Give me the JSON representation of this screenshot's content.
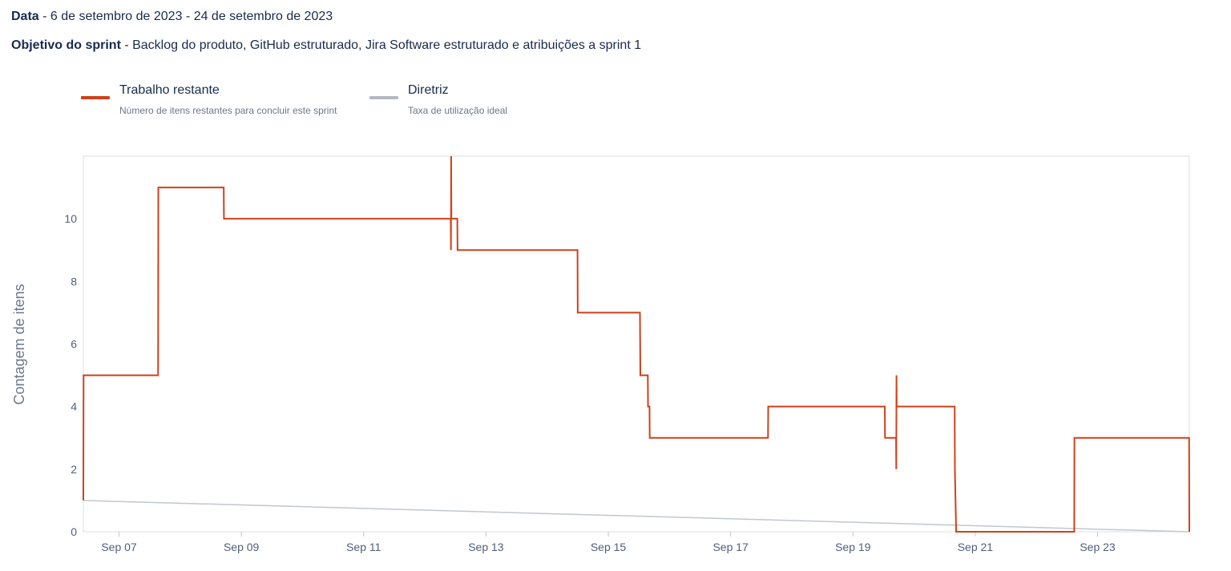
{
  "header": {
    "date_label": "Data",
    "date_value": "6 de setembro de 2023 - 24 de setembro de 2023",
    "goal_label": "Objetivo do sprint",
    "goal_value": "Backlog do produto, GitHub estruturado, Jira Software estruturado e atribuições a sprint 1"
  },
  "legend": {
    "remaining": {
      "title": "Trabalho restante",
      "subtitle": "Número de itens restantes para concluir este sprint",
      "color": "#d04119"
    },
    "guideline": {
      "title": "Diretriz",
      "subtitle": "Taxa de utilização ideal",
      "color": "#b3bac5"
    }
  },
  "colors": {
    "frame": "#dcdfe4",
    "axis_text": "#505f79",
    "axis_title": "#6b778c"
  },
  "chart_data": {
    "type": "line",
    "title": "",
    "xlabel": "",
    "ylabel": "Contagem de itens",
    "grid": false,
    "x_is_date": true,
    "xlim": [
      "2023-09-06 10:00",
      "2023-09-24 12:00"
    ],
    "ylim": [
      0,
      12
    ],
    "y_ticks": [
      0,
      2,
      4,
      6,
      8,
      10
    ],
    "x_ticks": [
      {
        "date": "2023-09-07",
        "label": "Sep 07"
      },
      {
        "date": "2023-09-09",
        "label": "Sep 09"
      },
      {
        "date": "2023-09-11",
        "label": "Sep 11"
      },
      {
        "date": "2023-09-13",
        "label": "Sep 13"
      },
      {
        "date": "2023-09-15",
        "label": "Sep 15"
      },
      {
        "date": "2023-09-17",
        "label": "Sep 17"
      },
      {
        "date": "2023-09-19",
        "label": "Sep 19"
      },
      {
        "date": "2023-09-21",
        "label": "Sep 21"
      },
      {
        "date": "2023-09-23",
        "label": "Sep 23"
      }
    ],
    "series": [
      {
        "name": "Trabalho restante",
        "color": "#d04119",
        "style": "step",
        "points": [
          [
            "2023-09-06 10:00",
            1
          ],
          [
            "2023-09-06 10:05",
            5
          ],
          [
            "2023-09-07 15:20",
            5
          ],
          [
            "2023-09-07 15:25",
            11
          ],
          [
            "2023-09-08 17:05",
            11
          ],
          [
            "2023-09-08 17:10",
            10
          ],
          [
            "2023-09-12 10:10",
            10
          ],
          [
            "2023-09-12 10:15",
            9
          ],
          [
            "2023-09-12 10:20",
            12
          ],
          [
            "2023-09-12 10:25",
            10
          ],
          [
            "2023-09-12 12:45",
            10
          ],
          [
            "2023-09-12 12:50",
            9
          ],
          [
            "2023-09-14 11:55",
            9
          ],
          [
            "2023-09-14 12:00",
            7
          ],
          [
            "2023-09-15 12:25",
            7
          ],
          [
            "2023-09-15 12:30",
            6
          ],
          [
            "2023-09-15 12:35",
            5
          ],
          [
            "2023-09-15 15:30",
            5
          ],
          [
            "2023-09-15 15:35",
            4
          ],
          [
            "2023-09-15 16:10",
            4
          ],
          [
            "2023-09-15 16:15",
            3
          ],
          [
            "2023-09-17 14:40",
            3
          ],
          [
            "2023-09-17 14:45",
            4
          ],
          [
            "2023-09-19 12:30",
            4
          ],
          [
            "2023-09-19 12:35",
            3
          ],
          [
            "2023-09-19 16:55",
            3
          ],
          [
            "2023-09-19 17:00",
            2
          ],
          [
            "2023-09-19 17:05",
            5
          ],
          [
            "2023-09-19 17:10",
            4
          ],
          [
            "2023-09-20 15:55",
            4
          ],
          [
            "2023-09-20 16:00",
            2
          ],
          [
            "2023-09-20 16:30",
            0
          ],
          [
            "2023-09-22 14:50",
            0
          ],
          [
            "2023-09-22 14:55",
            3
          ],
          [
            "2023-09-24 11:55",
            3
          ],
          [
            "2023-09-24 12:00",
            0
          ]
        ]
      },
      {
        "name": "Diretriz",
        "color": "#c1c7d0",
        "style": "linear",
        "points": [
          [
            "2023-09-06 10:00",
            1
          ],
          [
            "2023-09-24 12:00",
            0
          ]
        ]
      }
    ]
  }
}
